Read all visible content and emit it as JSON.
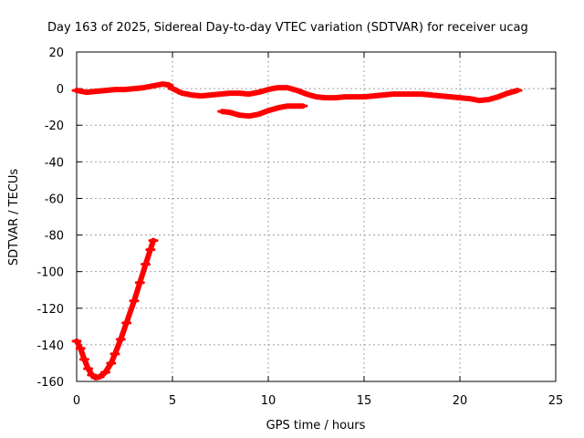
{
  "chart_data": {
    "type": "line",
    "title": "Day 163 of 2025, Sidereal Day-to-day VTEC variation (SDTVAR) for receiver ucag",
    "xlabel": "GPS time / hours",
    "ylabel": "SDTVAR / TECUs",
    "xlim": [
      0,
      25
    ],
    "ylim": [
      -160,
      20
    ],
    "x_ticks": [
      0,
      5,
      10,
      15,
      20,
      25
    ],
    "y_ticks": [
      -160,
      -140,
      -120,
      -100,
      -80,
      -60,
      -40,
      -20,
      0,
      20
    ],
    "grid": true,
    "color": "#ff0000",
    "series": [
      {
        "name": "main-track",
        "x": [
          0,
          0.5,
          1,
          1.5,
          2,
          2.5,
          3,
          3.5,
          4,
          4.5,
          4.8,
          5,
          5.5,
          6,
          6.5,
          7,
          7.5,
          8,
          8.5,
          9,
          9.5,
          10,
          10.5,
          11,
          11.5,
          12,
          12.5,
          13,
          13.5,
          14,
          14.5,
          15,
          15.5,
          16,
          16.5,
          17,
          17.5,
          18,
          18.5,
          19,
          19.5,
          20,
          20.5,
          21,
          21.5,
          22,
          22.5,
          23
        ],
        "y": [
          -1,
          -2,
          -1.5,
          -1,
          -0.5,
          -0.5,
          0,
          0.5,
          1.5,
          2.5,
          2,
          0,
          -2.5,
          -3.5,
          -4,
          -3.5,
          -3,
          -2.5,
          -2.5,
          -3,
          -2,
          -0.5,
          0.5,
          0.5,
          -1,
          -3,
          -4.5,
          -5,
          -5,
          -4.5,
          -4.5,
          -4.5,
          -4,
          -3.5,
          -3,
          -3,
          -3,
          -3,
          -3.5,
          -4,
          -4.5,
          -5,
          -5.5,
          -6.5,
          -6,
          -4.5,
          -2.5,
          -1
        ]
      },
      {
        "name": "secondary-track",
        "x": [
          7.6,
          8,
          8.5,
          9,
          9.5,
          10,
          10.5,
          11,
          11.5,
          11.8
        ],
        "y": [
          -12.5,
          -13,
          -14.5,
          -15,
          -14,
          -12,
          -10.5,
          -9.5,
          -9.5,
          -9.5
        ]
      },
      {
        "name": "deep-excursion",
        "x": [
          0,
          0.2,
          0.4,
          0.6,
          0.8,
          1,
          1.2,
          1.5,
          1.8,
          2,
          2.3,
          2.6,
          3,
          3.3,
          3.6,
          3.85,
          4
        ],
        "y": [
          -138,
          -142,
          -148,
          -153,
          -156.5,
          -158,
          -157.5,
          -155,
          -150,
          -145,
          -137,
          -128,
          -116,
          -106,
          -96,
          -88,
          -83
        ]
      }
    ]
  }
}
